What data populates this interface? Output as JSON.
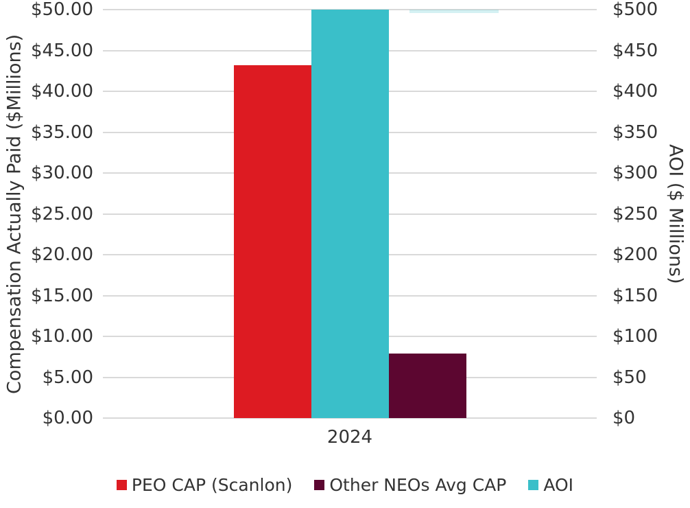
{
  "chart_data": {
    "type": "bar",
    "title": "",
    "categories": [
      "2024"
    ],
    "series": [
      {
        "name": "PEO CAP (Scanlon)",
        "axis": "left",
        "values": [
          43.2
        ],
        "color": "#dd1b22"
      },
      {
        "name": "Other NEOs Avg CAP",
        "axis": "left",
        "values": [
          7.9
        ],
        "color": "#5c0630"
      },
      {
        "name": "AOI",
        "axis": "right",
        "values": [
          500
        ],
        "color": "#3abfc9"
      }
    ],
    "bar_order": [
      "PEO CAP (Scanlon)",
      "AOI",
      "Other NEOs Avg CAP"
    ],
    "left_axis": {
      "label": "Compensation Actually Paid ($Millions)",
      "min": 0,
      "max": 50,
      "ticks": [
        "$50.00",
        "$45.00",
        "$40.00",
        "$35.00",
        "$30.00",
        "$25.00",
        "$20.00",
        "$15.00",
        "$10.00",
        "$5.00",
        "$0.00"
      ]
    },
    "right_axis": {
      "label": "AOI ($ Millions)",
      "min": 0,
      "max": 500,
      "ticks": [
        "$500",
        "$450",
        "$400",
        "$350",
        "$300",
        "$250",
        "$200",
        "$150",
        "$100",
        "$50",
        "$0"
      ]
    },
    "legend": [
      {
        "label": "PEO CAP (Scanlon)",
        "color": "#dd1b22"
      },
      {
        "label": "Other NEOs Avg CAP",
        "color": "#5c0630"
      },
      {
        "label": "AOI",
        "color": "#3abfc9"
      }
    ],
    "grid": true,
    "legend_position": "bottom"
  },
  "colors": {
    "background": "#ffffff",
    "gridline": "#d9d9d9",
    "text": "#333333"
  }
}
